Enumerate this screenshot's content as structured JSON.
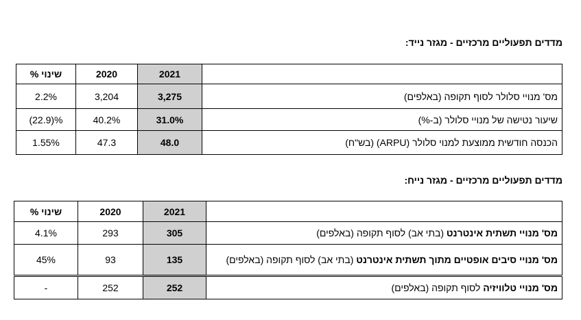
{
  "section_1": {
    "title": "מדדים תפעוליים מרכזיים - מגזר נייד:",
    "table": {
      "header": [
        "2021",
        "2020",
        "% שינוי"
      ],
      "rows": [
        [
          "מס' מנויי סלולר לסוף תקופה (באלפים)",
          "3,275",
          "3,204",
          "2.2%"
        ],
        [
          "שיעור נטישה של מנויי סלולר (ב-%)",
          "31.0%",
          "40.2%",
          "(22.9)%"
        ],
        [
          "הכנסה חודשית ממוצעת למנוי סלולר (ARPU) (בש\"ח)",
          "48.0",
          "47.3",
          "1.55%"
        ]
      ]
    }
  },
  "section_2": {
    "title": "מדדים תפעוליים מרכזיים - מגזר נייח:",
    "table": {
      "header": [
        "2021",
        "2020",
        "% שינוי"
      ],
      "rows": [
        {
          "label_bold": "מס' מנויי תשתית אינטרנט",
          "label_rest": "(בתי אב) לסוף תקופה (באלפים)",
          "cells": [
            "305",
            "293",
            "4.1%"
          ]
        },
        {
          "label_bold": "מס' מנויי סיבים אופטיים מתוך תשתית אינטרנט",
          "label_rest": "(בתי אב) לסוף תקופה (באלפים)",
          "cells": [
            "135",
            "93",
            "45%"
          ]
        },
        {
          "label_bold": "מס' מנויי טלוויזיה",
          "label_rest": "לסוף תקופה (באלפים)",
          "cells": [
            "252",
            "252",
            "-"
          ]
        }
      ]
    }
  }
}
